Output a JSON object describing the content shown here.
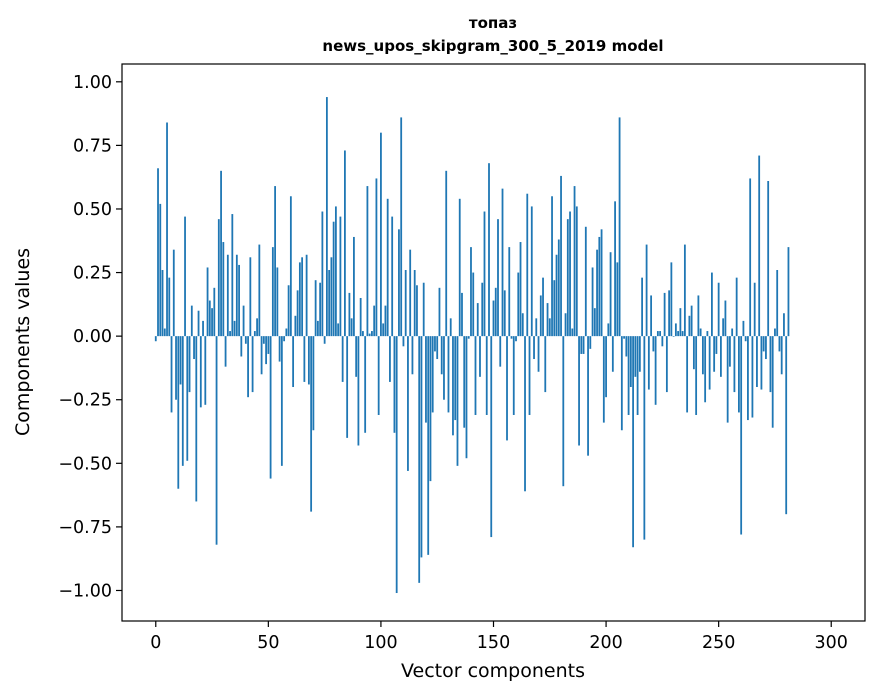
{
  "chart_data": {
    "type": "bar",
    "title_line1": "топаз",
    "title_line2": "news_upos_skipgram_300_5_2019 model",
    "xlabel": "Vector components",
    "ylabel": "Components values",
    "xlim": [
      -15,
      315
    ],
    "ylim": [
      -1.12,
      1.07
    ],
    "xticks": [
      0,
      50,
      100,
      150,
      200,
      250,
      300
    ],
    "xtick_labels": [
      "0",
      "50",
      "100",
      "150",
      "200",
      "250",
      "300"
    ],
    "yticks": [
      1.0,
      0.75,
      0.5,
      0.25,
      0.0,
      -0.25,
      -0.5,
      -0.75,
      -1.0
    ],
    "ytick_labels": [
      "1.00",
      "0.75",
      "0.50",
      "0.25",
      "0.00",
      "−0.25",
      "−0.50",
      "−0.75",
      "−1.00"
    ],
    "bar_color": "#1f77b4",
    "values": [
      -0.02,
      0.66,
      0.52,
      0.26,
      0.03,
      0.84,
      0.23,
      -0.3,
      0.34,
      -0.25,
      -0.6,
      -0.19,
      -0.51,
      0.47,
      -0.49,
      -0.22,
      0.12,
      -0.09,
      -0.65,
      0.1,
      -0.28,
      0.06,
      -0.27,
      0.27,
      0.14,
      0.11,
      0.19,
      -0.82,
      0.46,
      0.65,
      0.37,
      -0.12,
      0.32,
      0.02,
      0.48,
      0.06,
      0.32,
      0.28,
      -0.08,
      0.12,
      -0.03,
      -0.24,
      0.31,
      -0.22,
      0.02,
      0.07,
      0.36,
      -0.15,
      -0.03,
      -0.11,
      -0.07,
      -0.56,
      0.35,
      0.59,
      0.27,
      -0.1,
      -0.51,
      -0.02,
      0.03,
      0.2,
      0.55,
      -0.2,
      0.08,
      0.18,
      0.29,
      0.31,
      -0.18,
      0.32,
      -0.19,
      -0.69,
      -0.37,
      0.22,
      0.06,
      0.21,
      0.49,
      -0.03,
      0.94,
      0.26,
      0.31,
      0.45,
      0.51,
      0.05,
      0.47,
      -0.18,
      0.73,
      -0.4,
      0.17,
      0.07,
      0.39,
      -0.16,
      -0.43,
      0.15,
      0.02,
      -0.38,
      0.59,
      0.01,
      0.02,
      0.12,
      0.62,
      -0.31,
      0.8,
      0.05,
      0.12,
      0.54,
      -0.18,
      0.47,
      -0.38,
      -1.01,
      0.42,
      0.86,
      -0.04,
      0.26,
      -0.53,
      0.34,
      -0.15,
      0.26,
      0.2,
      -0.97,
      -0.87,
      0.21,
      -0.34,
      -0.86,
      -0.57,
      -0.3,
      -0.06,
      -0.09,
      0.19,
      -0.15,
      -0.25,
      0.65,
      -0.3,
      0.07,
      -0.39,
      -0.33,
      -0.51,
      0.54,
      0.17,
      -0.36,
      -0.48,
      -0.01,
      0.35,
      0.25,
      -0.31,
      0.13,
      -0.16,
      0.21,
      0.49,
      -0.31,
      0.68,
      -0.79,
      0.14,
      0.19,
      0.46,
      -0.12,
      0.58,
      0.18,
      -0.41,
      0.35,
      -0.01,
      -0.31,
      -0.02,
      0.25,
      0.37,
      0.09,
      -0.61,
      0.56,
      -0.31,
      0.51,
      -0.09,
      0.07,
      -0.14,
      0.16,
      0.23,
      -0.22,
      0.13,
      0.07,
      0.55,
      0.22,
      0.32,
      0.38,
      0.63,
      -0.59,
      0.09,
      0.46,
      0.49,
      0.03,
      0.59,
      0.51,
      -0.43,
      -0.07,
      -0.07,
      0.43,
      -0.47,
      -0.05,
      0.27,
      0.11,
      0.34,
      0.39,
      0.42,
      -0.34,
      -0.24,
      0.05,
      0.33,
      -0.14,
      0.53,
      0.29,
      0.86,
      -0.37,
      -0.01,
      -0.08,
      -0.31,
      -0.2,
      -0.83,
      -0.16,
      -0.31,
      -0.14,
      0.23,
      -0.8,
      0.36,
      -0.21,
      0.16,
      -0.06,
      -0.27,
      0.02,
      0.02,
      -0.04,
      0.17,
      -0.22,
      0.18,
      0.29,
      0.0,
      0.05,
      0.02,
      0.11,
      0.02,
      0.36,
      -0.3,
      0.08,
      0.12,
      -0.13,
      -0.31,
      0.16,
      0.03,
      -0.15,
      -0.26,
      0.02,
      -0.21,
      0.25,
      -0.14,
      -0.07,
      0.21,
      -0.16,
      0.07,
      0.14,
      -0.34,
      -0.12,
      0.03,
      -0.22,
      0.23,
      -0.3,
      -0.78,
      0.06,
      -0.02,
      -0.33,
      0.62,
      -0.32,
      0.21,
      -0.2,
      0.71,
      -0.21,
      -0.06,
      -0.09,
      0.61,
      -0.22,
      -0.36,
      0.03,
      0.26,
      -0.06,
      -0.15,
      0.09,
      -0.7,
      0.35
    ]
  }
}
